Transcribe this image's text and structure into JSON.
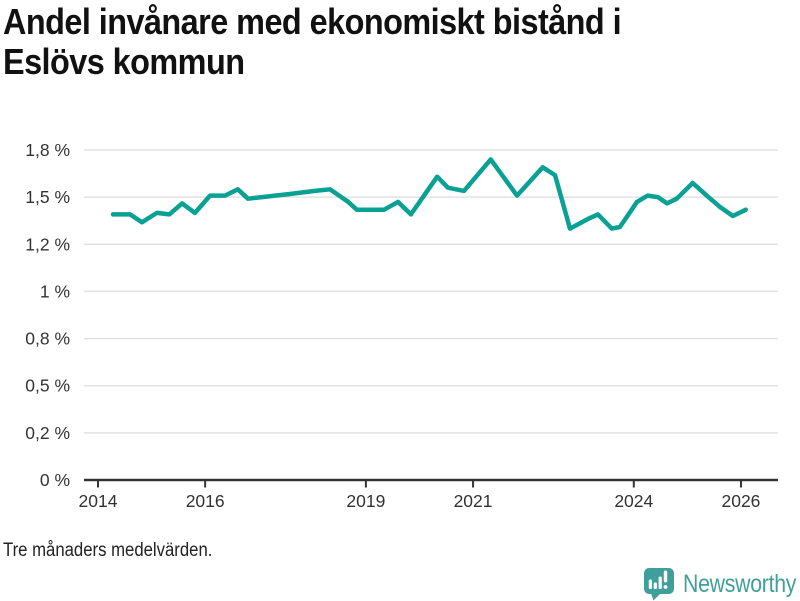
{
  "title": "Andel invånare med ekonomiskt bistånd i Eslövs kommun",
  "title_lines": [
    "Andel invånare med ekonomiskt bistånd i",
    "Eslövs kommun"
  ],
  "footnote": "Tre månaders medelvärden.",
  "branding": {
    "name": "Newsworthy",
    "icon": "newsworthy-barchart-bubble-icon",
    "color": "#3fa09b"
  },
  "colors": {
    "line": "#09a194",
    "grid": "#e2e2e2",
    "axis": "#333333",
    "tick_text": "#333333",
    "title_text": "#111111"
  },
  "chart_data": {
    "type": "line",
    "title": "Andel invånare med ekonomiskt bistånd i Eslövs kommun",
    "xlabel": "",
    "ylabel": "",
    "unit": "%",
    "grid": true,
    "legend": false,
    "decimal_separator": ",",
    "y_ticks": [
      1.8,
      1.5,
      1.2,
      1,
      0.8,
      0.5,
      0.2,
      0
    ],
    "y_tick_labels": [
      "1,8 %",
      "1,5 %",
      "1,2 %",
      "1 %",
      "0,8 %",
      "0,5 %",
      "0,2 %",
      "0 %"
    ],
    "y_ticks_equally_spaced": true,
    "x_ticks": [
      2014,
      2016,
      2019,
      2021,
      2024,
      2026
    ],
    "x_tick_labels": [
      "2014",
      "2016",
      "2019",
      "2021",
      "2024",
      "2026"
    ],
    "x_range": [
      2013.73,
      2026.7
    ],
    "series": [
      {
        "name": "Andel invånare med ekonomiskt bistånd, Eslövs kommun",
        "x": [
          2014.28,
          2014.6,
          2014.82,
          2015.1,
          2015.33,
          2015.57,
          2015.81,
          2016.09,
          2016.37,
          2016.61,
          2016.8,
          2017.06,
          2017.58,
          2018.05,
          2018.33,
          2018.67,
          2018.83,
          2019.34,
          2019.6,
          2019.84,
          2020.33,
          2020.53,
          2020.83,
          2021.33,
          2021.82,
          2022.3,
          2022.53,
          2022.81,
          2023.14,
          2023.33,
          2023.59,
          2023.74,
          2024.06,
          2024.26,
          2024.45,
          2024.62,
          2024.8,
          2025.1,
          2025.36,
          2025.6,
          2025.85,
          2026.09
        ],
        "values": [
          1.39,
          1.39,
          1.34,
          1.4,
          1.39,
          1.46,
          1.4,
          1.51,
          1.51,
          1.55,
          1.49,
          1.5,
          1.52,
          1.54,
          1.55,
          1.47,
          1.42,
          1.42,
          1.47,
          1.39,
          1.63,
          1.56,
          1.54,
          1.74,
          1.51,
          1.69,
          1.64,
          1.3,
          1.36,
          1.39,
          1.3,
          1.31,
          1.47,
          1.51,
          1.5,
          1.46,
          1.49,
          1.59,
          1.51,
          1.44,
          1.38,
          1.42
        ]
      }
    ]
  }
}
